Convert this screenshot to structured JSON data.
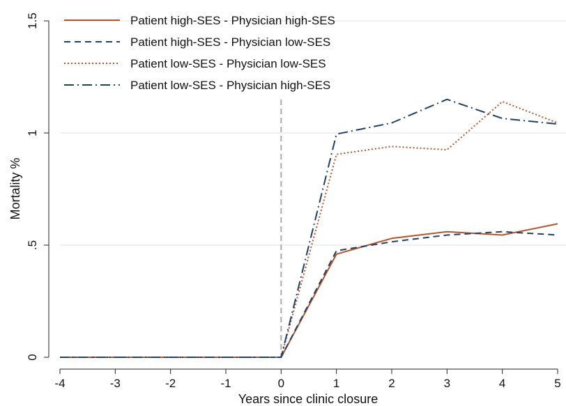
{
  "chart_data": {
    "type": "line",
    "title": "",
    "xlabel": "Years since clinic closure",
    "ylabel": "Mortality %",
    "x": [
      -4,
      -3,
      -2,
      -1,
      0,
      1,
      2,
      3,
      4,
      5
    ],
    "xlim": [
      -4,
      5
    ],
    "ylim": [
      0,
      1.5
    ],
    "x_ticks": [
      {
        "value": -4,
        "label": "-4"
      },
      {
        "value": -3,
        "label": "-3"
      },
      {
        "value": -2,
        "label": "-2"
      },
      {
        "value": -1,
        "label": "-1"
      },
      {
        "value": 0,
        "label": "0"
      },
      {
        "value": 1,
        "label": "1"
      },
      {
        "value": 2,
        "label": "2"
      },
      {
        "value": 3,
        "label": "3"
      },
      {
        "value": 4,
        "label": "4"
      },
      {
        "value": 5,
        "label": "5"
      }
    ],
    "y_ticks": [
      {
        "value": 0,
        "label": "0"
      },
      {
        "value": 0.5,
        "label": ".5"
      },
      {
        "value": 1,
        "label": "1"
      },
      {
        "value": 1.5,
        "label": "1.5"
      }
    ],
    "gridlines": "horizontal",
    "reference_line": {
      "axis": "x",
      "value": 0,
      "style": "dashed",
      "color": "#aaaaaa"
    },
    "legend_position": "top-left",
    "series": [
      {
        "name": "Patient high-SES - Physician high-SES",
        "color": "#b3532b",
        "dash": "solid",
        "values": [
          0,
          0,
          0,
          0,
          0,
          0.46,
          0.53,
          0.56,
          0.545,
          0.595
        ]
      },
      {
        "name": "Patient high-SES - Physician low-SES",
        "color": "#1f3f63",
        "dash": "dashed",
        "values": [
          0,
          0,
          0,
          0,
          0,
          0.475,
          0.515,
          0.545,
          0.56,
          0.545
        ]
      },
      {
        "name": "Patient low-SES - Physician low-SES",
        "color": "#b3532b",
        "dash": "dotted",
        "values": [
          0,
          0,
          0,
          0,
          0,
          0.905,
          0.94,
          0.925,
          1.14,
          1.045
        ]
      },
      {
        "name": "Patient low-SES - Physician high-SES",
        "color": "#1f3f63",
        "dash": "dashdot",
        "values": [
          0,
          0,
          0,
          0,
          0,
          0.995,
          1.045,
          1.15,
          1.065,
          1.04
        ]
      }
    ]
  }
}
